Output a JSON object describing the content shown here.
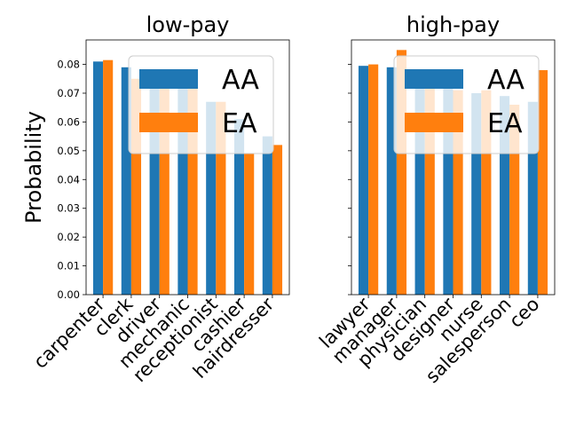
{
  "chart_data": [
    {
      "type": "bar",
      "title": "low-pay",
      "ylabel": "Probability",
      "ylim": [
        0,
        0.0885
      ],
      "yticks": [
        0.0,
        0.01,
        0.02,
        0.03,
        0.04,
        0.05,
        0.06,
        0.07,
        0.08
      ],
      "yticklabels": [
        "0.00",
        "0.01",
        "0.02",
        "0.03",
        "0.04",
        "0.05",
        "0.06",
        "0.07",
        "0.08"
      ],
      "categories": [
        "carpenter",
        "clerk",
        "driver",
        "mechanic",
        "receptionist",
        "cashier",
        "hairdresser"
      ],
      "series": [
        {
          "name": "AA",
          "color": "#1f77b4",
          "values": [
            0.081,
            0.079,
            0.075,
            0.074,
            0.067,
            0.061,
            0.055
          ]
        },
        {
          "name": "EA",
          "color": "#ff7f0e",
          "values": [
            0.0815,
            0.075,
            0.0735,
            0.073,
            0.067,
            0.049,
            0.052
          ]
        }
      ],
      "legend": "upper-right",
      "grid": false
    },
    {
      "type": "bar",
      "title": "high-pay",
      "ylim": [
        0,
        0.0885
      ],
      "yticks": [
        0.0,
        0.01,
        0.02,
        0.03,
        0.04,
        0.05,
        0.06,
        0.07,
        0.08
      ],
      "categories": [
        "lawyer",
        "manager",
        "physician",
        "designer",
        "nurse",
        "salesperson",
        "ceo"
      ],
      "series": [
        {
          "name": "AA",
          "color": "#1f77b4",
          "values": [
            0.0795,
            0.079,
            0.075,
            0.072,
            0.07,
            0.069,
            0.067
          ]
        },
        {
          "name": "EA",
          "color": "#ff7f0e",
          "values": [
            0.08,
            0.085,
            0.078,
            0.071,
            0.071,
            0.066,
            0.078
          ]
        }
      ],
      "legend": "upper-right",
      "grid": false
    }
  ]
}
